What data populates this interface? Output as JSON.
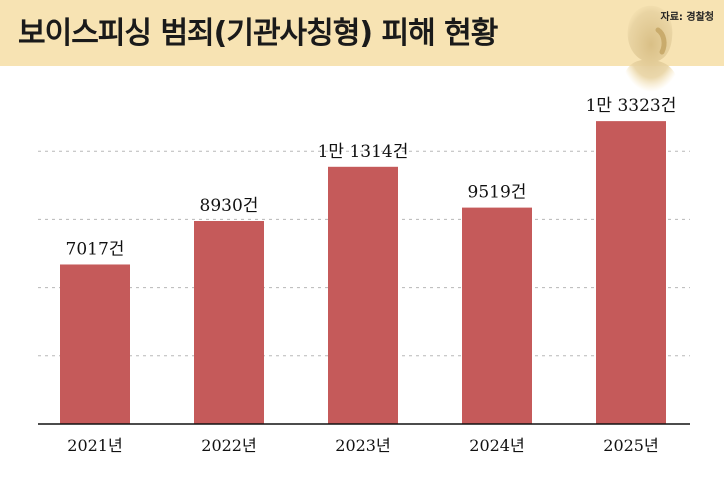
{
  "header": {
    "title": "보이스피싱 범죄(기관사칭형) 피해 현황",
    "source": "자료: 경찰청"
  },
  "colors": {
    "bar": "#c55a5a",
    "header_bg": "#f7e3b3",
    "grid": "#b8b8b8"
  },
  "chart_data": {
    "type": "bar",
    "title": "보이스피싱 범죄(기관사칭형) 피해 현황",
    "xlabel": "",
    "ylabel": "",
    "categories": [
      "2021년",
      "2022년",
      "2023년",
      "2024년",
      "2025년"
    ],
    "values": [
      7017,
      8930,
      11314,
      9519,
      13323
    ],
    "data_labels": [
      "7017건",
      "8930건",
      "1만 1314건",
      "9519건",
      "1만 3323건"
    ],
    "ylim": [
      0,
      15000
    ],
    "grid": true,
    "legend": "none"
  }
}
